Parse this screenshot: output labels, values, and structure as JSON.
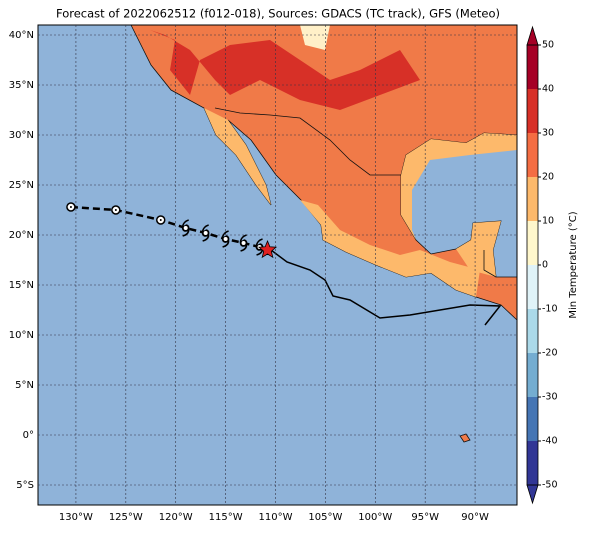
{
  "chart_data": {
    "type": "map",
    "title": "Forecast of 2022062512 (f012-018), Sources: GDACS (TC track), GFS (Meteo)",
    "xlim": [
      -133.8,
      -85.8
    ],
    "ylim": [
      -7,
      41
    ],
    "xticks": [
      {
        "value": -130,
        "label": "130°W"
      },
      {
        "value": -125,
        "label": "125°W"
      },
      {
        "value": -120,
        "label": "120°W"
      },
      {
        "value": -115,
        "label": "115°W"
      },
      {
        "value": -110,
        "label": "110°W"
      },
      {
        "value": -105,
        "label": "105°W"
      },
      {
        "value": -100,
        "label": "100°W"
      },
      {
        "value": -95,
        "label": "95°W"
      },
      {
        "value": -90,
        "label": "90°W"
      }
    ],
    "yticks": [
      {
        "value": 40,
        "label": "40°N"
      },
      {
        "value": 35,
        "label": "35°N"
      },
      {
        "value": 30,
        "label": "30°N"
      },
      {
        "value": 25,
        "label": "25°N"
      },
      {
        "value": 20,
        "label": "20°N"
      },
      {
        "value": 15,
        "label": "15°N"
      },
      {
        "value": 10,
        "label": "10°N"
      },
      {
        "value": 5,
        "label": "5°N"
      },
      {
        "value": 0,
        "label": "0°"
      },
      {
        "value": -5,
        "label": "5°S"
      }
    ],
    "grid": true,
    "track": {
      "lon": [
        -130.5,
        -126,
        -121.5,
        -119,
        -117,
        -115,
        -113.2,
        -111.6,
        -110.8
      ],
      "lat": [
        22.8,
        22.5,
        21.5,
        20.7,
        20.2,
        19.6,
        19.2,
        18.8,
        18.5
      ]
    },
    "colorbar": {
      "label": "Min Temperature (°C)",
      "clim": [
        -50,
        50
      ],
      "ticks": [
        50,
        40,
        30,
        20,
        10,
        0,
        -10,
        -20,
        -30,
        -40,
        -50
      ],
      "colors": [
        "#313695",
        "#4575b4",
        "#74add1",
        "#abd9e9",
        "#e0f3f8",
        "#fff7cc",
        "#fdb96b",
        "#f46d43",
        "#d73027",
        "#a50026"
      ]
    }
  }
}
